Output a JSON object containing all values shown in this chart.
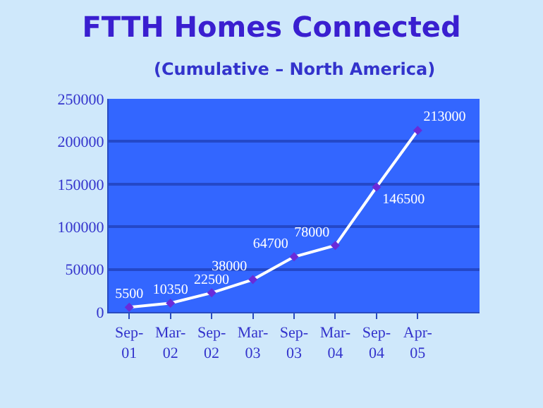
{
  "chart_data": {
    "type": "line",
    "title": "FTTH Homes Connected",
    "subtitle": "(Cumulative – North America)",
    "categories": [
      "Sep-01",
      "Mar-02",
      "Sep-02",
      "Mar-03",
      "Sep-03",
      "Mar-04",
      "Sep-04",
      "Apr-05",
      null
    ],
    "series": [
      {
        "color": "#ffffff",
        "values": [
          5500,
          10350,
          22500,
          38000,
          64700,
          78000,
          146500,
          213000,
          null
        ]
      }
    ],
    "ylim": [
      0,
      250000
    ],
    "yticks": [
      0,
      50000,
      100000,
      150000,
      200000,
      250000
    ],
    "grid": "y",
    "marker": "diamond",
    "line_style": "solid",
    "data_labels": true
  }
}
